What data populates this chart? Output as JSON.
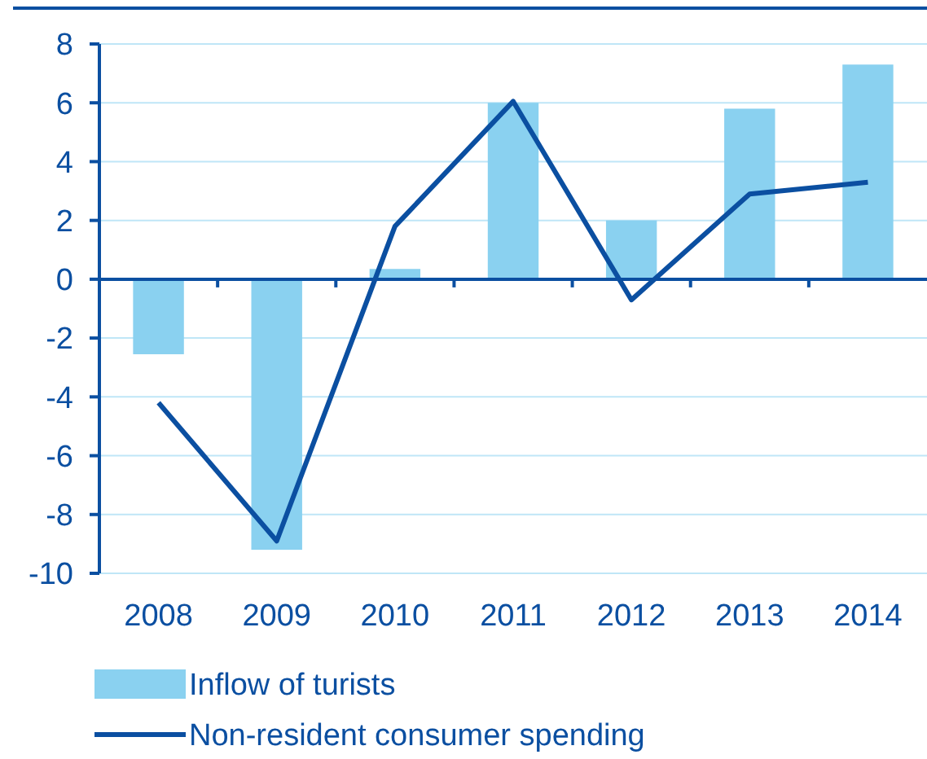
{
  "chart_data": {
    "type": "bar",
    "categories": [
      "2008",
      "2009",
      "2010",
      "2011",
      "2012",
      "2013",
      "2014"
    ],
    "series": [
      {
        "name": "Inflow of turists",
        "color": "#8ad1f0",
        "values": [
          -2.55,
          -9.2,
          0.35,
          6.0,
          2.0,
          5.8,
          7.3
        ]
      },
      {
        "name": "Non-resident consumer spending",
        "type": "line",
        "color": "#0b4fa1",
        "values": [
          -4.2,
          -8.9,
          1.8,
          6.05,
          -0.7,
          2.9,
          3.3
        ]
      }
    ],
    "ylim": [
      -10,
      8
    ],
    "yticks": [
      -10,
      -8,
      -6,
      -4,
      -2,
      0,
      2,
      4,
      6,
      8
    ],
    "ref_lines": [
      {
        "axis": "y",
        "value": 0,
        "color": "#0b4fa1"
      }
    ],
    "grid": "y",
    "legend": "bottom",
    "marker": "none",
    "line_style": "solid"
  }
}
